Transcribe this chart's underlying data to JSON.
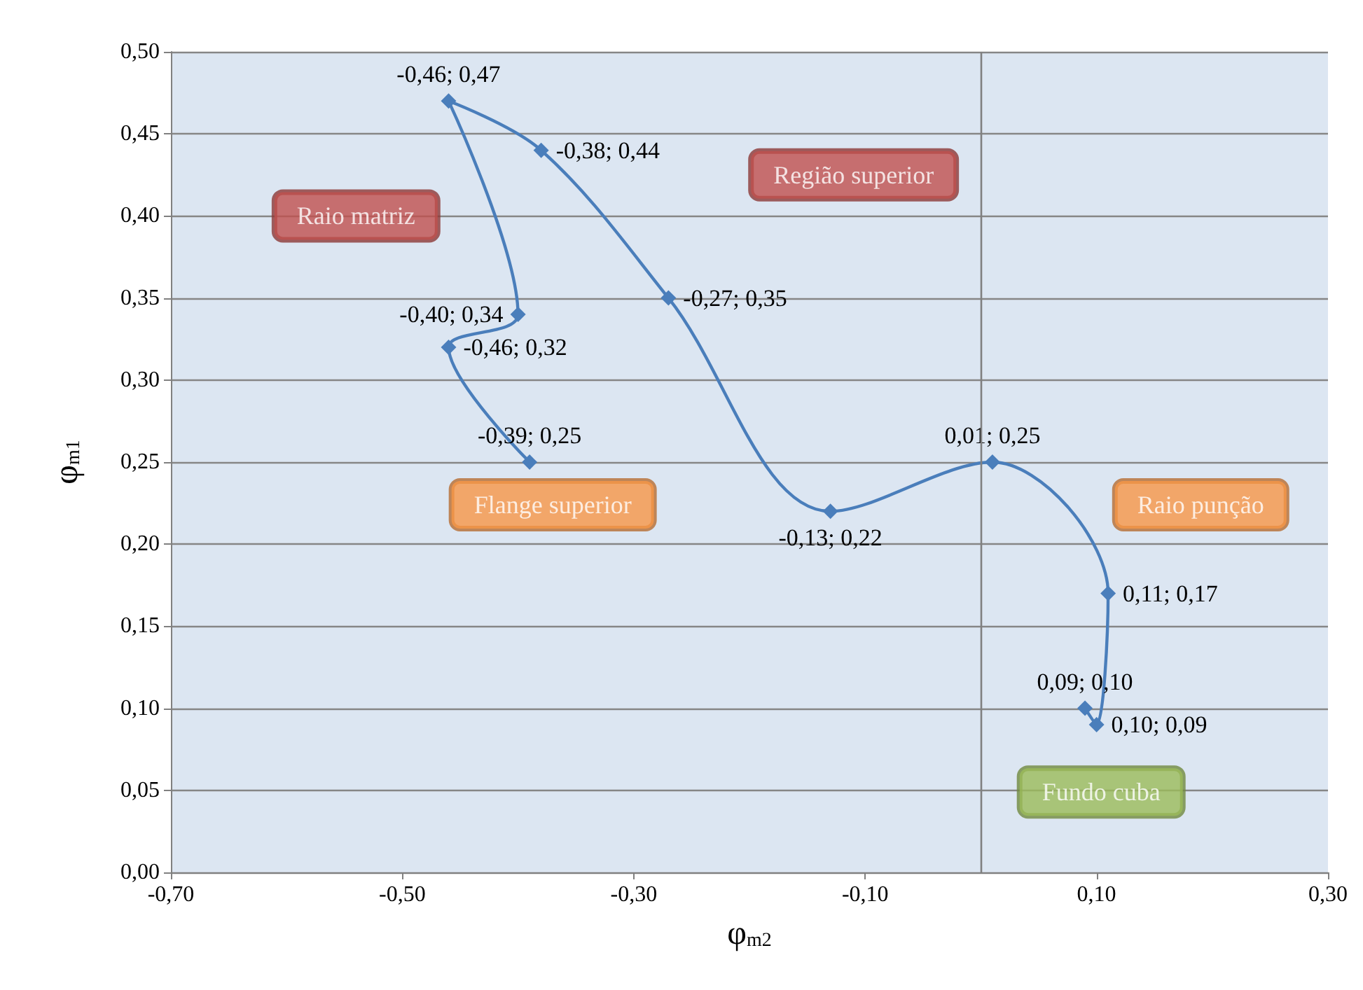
{
  "chart_data": {
    "type": "line",
    "xlabel": "φ$_{m2}$",
    "ylabel": "φ$_{m1}$",
    "x": [
      -0.39,
      -0.46,
      -0.4,
      -0.46,
      -0.38,
      -0.27,
      -0.13,
      0.01,
      0.11,
      0.1,
      0.09
    ],
    "series": [
      {
        "color": "#4a7ebb",
        "values": [
          0.25,
          0.32,
          0.34,
          0.47,
          0.44,
          0.35,
          0.22,
          0.25,
          0.17,
          0.09,
          0.1
        ],
        "value_labels": [
          "-0,39; 0,25",
          "-0,46; 0,32",
          "-0,40; 0,34",
          "-0,46; 0,47",
          "-0,38; 0,44",
          "-0,27; 0,35",
          "-0,13; 0,22",
          "0,01; 0,25",
          "0,11; 0,17",
          "0,10; 0,09",
          "0,09; 0,10"
        ]
      }
    ],
    "xlim": [
      -0.7,
      0.3
    ],
    "xticks": [
      {
        "value": -0.7,
        "label": "-0,70"
      },
      {
        "value": -0.5,
        "label": "-0,50"
      },
      {
        "value": -0.3,
        "label": "-0,30"
      },
      {
        "value": -0.1,
        "label": "-0,10"
      },
      {
        "value": 0.1,
        "label": "0,10"
      },
      {
        "value": 0.3,
        "label": "0,30"
      }
    ],
    "ylim": [
      0,
      0.5
    ],
    "yticks": [
      {
        "value": 0,
        "label": "0,00"
      },
      {
        "value": 0.05,
        "label": "0,05"
      },
      {
        "value": 0.1,
        "label": "0,10"
      },
      {
        "value": 0.15,
        "label": "0,15"
      },
      {
        "value": 0.2,
        "label": "0,20"
      },
      {
        "value": 0.25,
        "label": "0,25"
      },
      {
        "value": 0.3,
        "label": "0,30"
      },
      {
        "value": 0.35,
        "label": "0,35"
      },
      {
        "value": 0.4,
        "label": "0,40"
      },
      {
        "value": 0.45,
        "label": "0,45"
      },
      {
        "value": 0.5,
        "label": "0,50"
      }
    ],
    "ref_lines": [
      {
        "axis": "x",
        "value": 0,
        "color": "#808080"
      }
    ],
    "annotations": [
      "Raio matriz",
      "Região superior",
      "Flange superior",
      "Raio punção",
      "Fundo cuba"
    ],
    "grid": "y",
    "marker": "diamond",
    "line_style": "solid"
  }
}
